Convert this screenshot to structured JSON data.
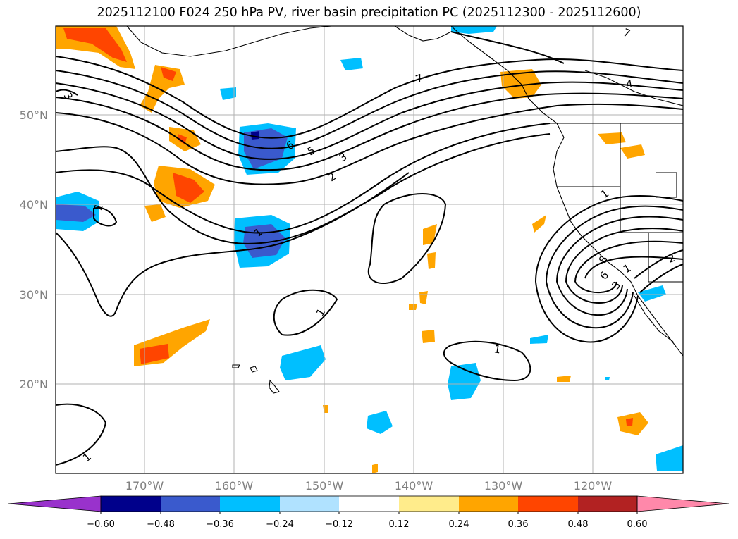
{
  "title": "2025112100 F024 250 hPa PV, river basin precipitation PC (2025112300 - 2025112600)",
  "axes": {
    "lat_labels": [
      "50°N",
      "40°N",
      "30°N",
      "20°N"
    ],
    "lon_labels": [
      "170°W",
      "160°W",
      "150°W",
      "140°W",
      "130°W",
      "120°W"
    ]
  },
  "colorbar": {
    "colors": [
      "#9932cc",
      "#00008b",
      "#3a5acd",
      "#00bfff",
      "#b0e2ff",
      "#ffffff",
      "#ffec8b",
      "#ffa500",
      "#ff4500",
      "#b22222",
      "#ff88aa"
    ],
    "ticks": [
      "−0.60",
      "−0.48",
      "−0.36",
      "−0.24",
      "−0.12",
      "0.12",
      "0.24",
      "0.36",
      "0.48",
      "0.60"
    ]
  },
  "contour_labels": [
    "1",
    "2",
    "3",
    "4",
    "5",
    "6",
    "7",
    "1",
    "1",
    "1",
    "1",
    "1",
    "2",
    "1",
    "7",
    "3",
    "6",
    "8",
    "3"
  ],
  "map_data": {
    "domain": {
      "lon": [
        -180,
        -110
      ],
      "lat": [
        10,
        60
      ]
    },
    "field": "250 hPa PV",
    "shading": "river basin precipitation PC"
  }
}
